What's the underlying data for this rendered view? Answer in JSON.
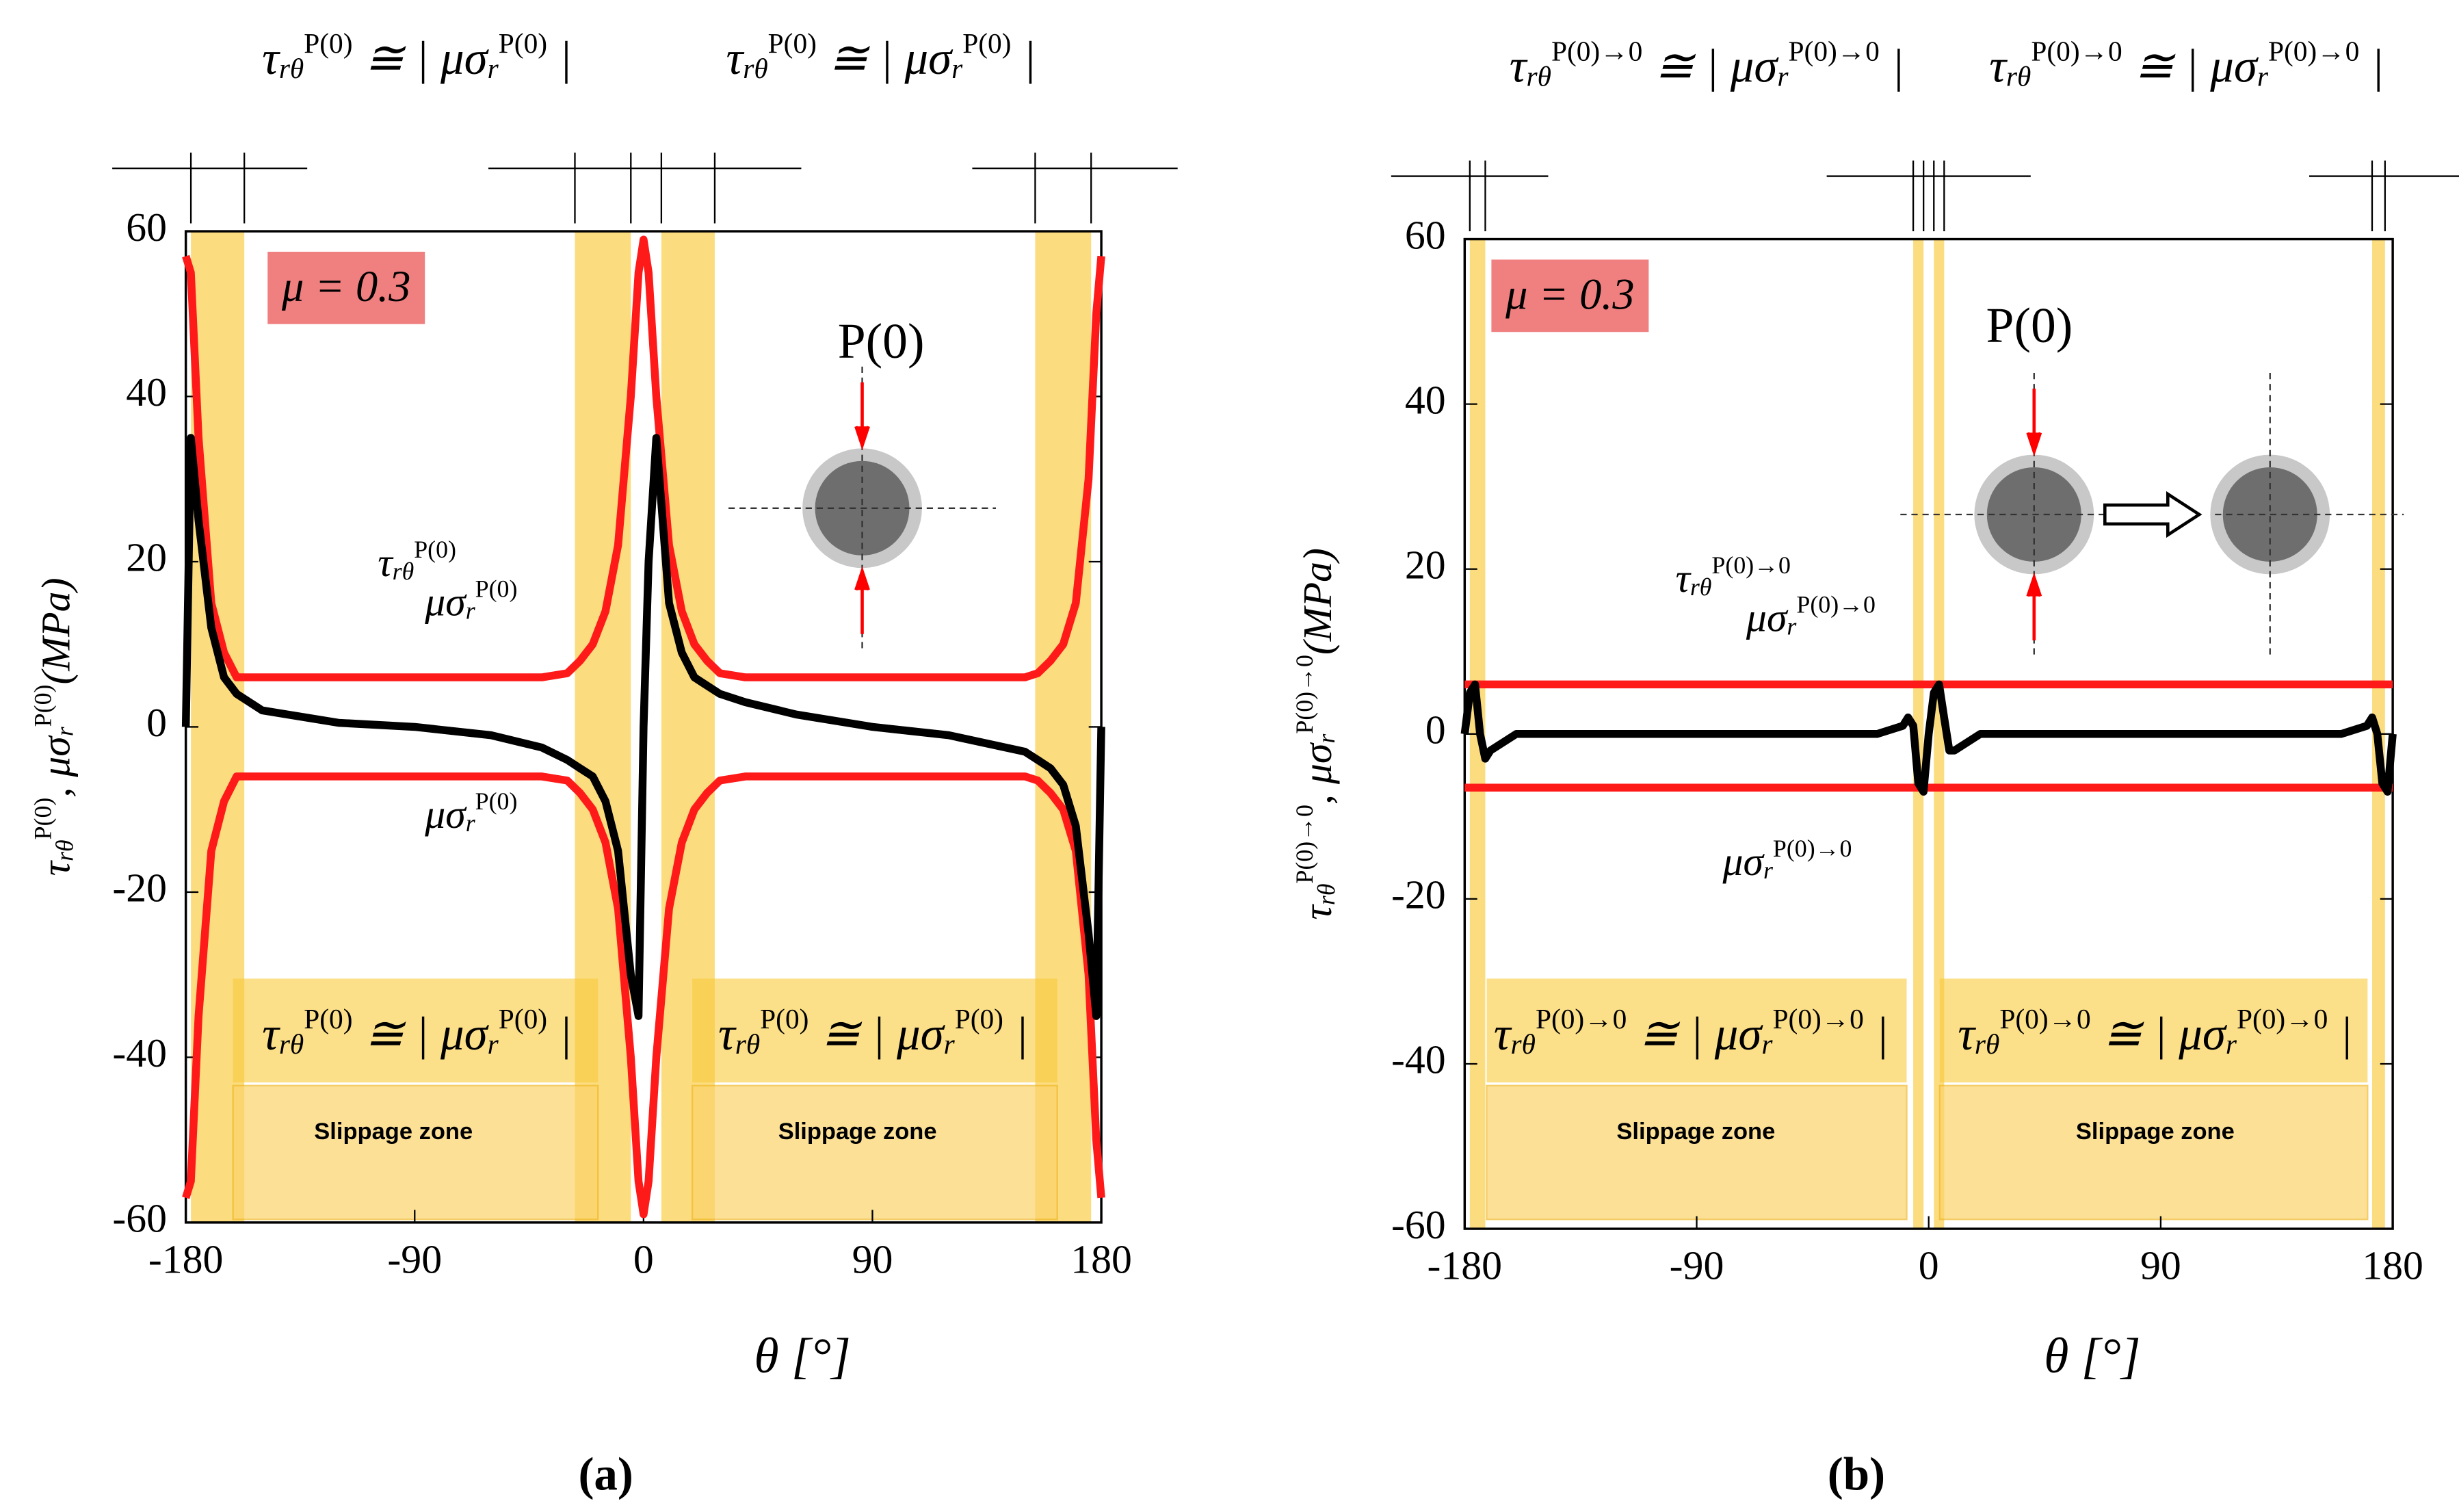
{
  "chart_data": [
    {
      "type": "line",
      "title": "(a)",
      "x_label": "θ [°]",
      "y_label": [
        {
          "text": "τ",
          "sub": "rθ",
          "sup": "P(0)"
        },
        {
          "text": ", μσ",
          "sub": "r",
          "sup": "P(0)"
        },
        {
          "text": "(MPa)"
        }
      ],
      "xlim": [
        -180,
        180
      ],
      "xticks": [
        -180,
        -90,
        0,
        90,
        180
      ],
      "ylim": [
        -60,
        60
      ],
      "yticks": [
        -60,
        -40,
        -20,
        0,
        20,
        40,
        60
      ],
      "slip_zones": [
        [
          -178,
          -157
        ],
        [
          -27,
          -5
        ],
        [
          7,
          28
        ],
        [
          154,
          176
        ]
      ],
      "x": [
        -180,
        -178,
        -175,
        -170,
        -165,
        -160,
        -150,
        -120,
        -90,
        -60,
        -40,
        -30,
        -25,
        -20,
        -15,
        -10,
        -5,
        -2,
        0,
        2,
        5,
        10,
        15,
        20,
        25,
        30,
        40,
        60,
        90,
        120,
        150,
        155,
        160,
        165,
        170,
        175,
        178,
        180
      ],
      "series": [
        {
          "color": "#ff1a1a",
          "values": [
            57,
            55,
            35,
            15,
            9,
            6,
            6,
            6,
            6,
            6,
            6,
            6.5,
            8,
            10,
            14,
            22,
            40,
            55,
            59,
            55,
            40,
            22,
            14,
            10,
            8,
            6.5,
            6,
            6,
            6,
            6,
            6,
            6.5,
            8,
            10,
            15,
            30,
            50,
            57
          ]
        },
        {
          "color": "#ff1a1a",
          "values": [
            -57,
            -55,
            -35,
            -15,
            -9,
            -6,
            -6,
            -6,
            -6,
            -6,
            -6,
            -6.5,
            -8,
            -10,
            -14,
            -22,
            -40,
            -55,
            -59,
            -55,
            -40,
            -22,
            -14,
            -10,
            -8,
            -6.5,
            -6,
            -6,
            -6,
            -6,
            -6,
            -6.5,
            -8,
            -10,
            -15,
            -30,
            -50,
            -57
          ]
        },
        {
          "color": "#000000",
          "values": [
            0,
            35,
            25,
            12,
            6,
            4,
            2,
            0.5,
            0,
            -1,
            -2.5,
            -4,
            -5,
            -6,
            -9,
            -15,
            -30,
            -35,
            0,
            20,
            35,
            15,
            9,
            6,
            5,
            4,
            3,
            1.5,
            0,
            -1,
            -3,
            -4,
            -5,
            -7,
            -12,
            -25,
            -35,
            0
          ]
        }
      ],
      "mu_label": "μ = 0.3",
      "load_label": "P(0)",
      "slip_labels": [
        "Slippage zone",
        "Slippage zone"
      ],
      "formulas": [
        [
          {
            "text": "τ",
            "sub": "rθ",
            "sup": "P(0)"
          },
          {
            "text": " ≅ | μσ",
            "sub": "r",
            "sup": "P(0)"
          },
          {
            "text": " |"
          }
        ],
        [
          {
            "text": "τ",
            "sub": "rθ",
            "sup": "P(0)"
          },
          {
            "text": " ≅ | μσ",
            "sub": "r",
            "sup": "P(0)"
          },
          {
            "text": " |"
          }
        ],
        [
          {
            "text": "τ",
            "sub": "rθ",
            "sup": "P(0)"
          },
          {
            "text": " ≅ | μσ",
            "sub": "r",
            "sup": "P(0)"
          },
          {
            "text": " |"
          }
        ],
        [
          {
            "text": "τ",
            "sub": "rθ",
            "sup": "P(0)"
          },
          {
            "text": " ≅ | μσ",
            "sub": "r",
            "sup": "P(0)"
          },
          {
            "text": " |"
          }
        ]
      ],
      "curve_labels": [
        [
          {
            "text": "τ",
            "sub": "rθ",
            "sup": "P(0)"
          }
        ],
        [
          {
            "text": "μσ",
            "sub": "r",
            "sup": "P(0)"
          }
        ],
        [
          {
            "text": "μσ",
            "sub": "r",
            "sup": "P(0)"
          }
        ]
      ]
    },
    {
      "type": "line",
      "title": "(b)",
      "x_label": "θ [°]",
      "y_label": [
        {
          "text": "τ",
          "sub": "rθ",
          "sup": "P(0)→0"
        },
        {
          "text": ", μσ",
          "sub": "r",
          "sup": "P(0)→0"
        },
        {
          "text": "(MPa)"
        }
      ],
      "xlim": [
        -180,
        180
      ],
      "xticks": [
        -180,
        -90,
        0,
        90,
        180
      ],
      "ylim": [
        -60,
        60
      ],
      "yticks": [
        -60,
        -40,
        -20,
        0,
        20,
        40,
        60
      ],
      "slip_zones": [
        [
          -178,
          -172
        ],
        [
          -6,
          -2
        ],
        [
          2,
          6
        ],
        [
          172,
          177
        ]
      ],
      "x": [
        -180,
        -178,
        -176,
        -174,
        -172,
        -170,
        -160,
        -90,
        -20,
        -10,
        -8,
        -6,
        -4,
        -2,
        0,
        2,
        4,
        6,
        8,
        10,
        20,
        90,
        160,
        170,
        172,
        174,
        176,
        178,
        180
      ],
      "series": [
        {
          "color": "#ff1a1a",
          "values": [
            6,
            6,
            6,
            6,
            6,
            6,
            6,
            6,
            6,
            6,
            6,
            6,
            6,
            6,
            6,
            6,
            6,
            6,
            6,
            6,
            6,
            6,
            6,
            6,
            6,
            6,
            6,
            6,
            6
          ]
        },
        {
          "color": "#ff1a1a",
          "values": [
            -6.5,
            -6.5,
            -6.5,
            -6.5,
            -6.5,
            -6.5,
            -6.5,
            -6.5,
            -6.5,
            -6.5,
            -6.5,
            -6.5,
            -6.5,
            -6.5,
            -6.5,
            -6.5,
            -6.5,
            -6.5,
            -6.5,
            -6.5,
            -6.5,
            -6.5,
            -6.5,
            -6.5,
            -6.5,
            -6.5,
            -6.5,
            -6.5,
            -6.5
          ]
        },
        {
          "color": "#000000",
          "values": [
            0,
            5,
            6,
            0,
            -3,
            -2,
            0,
            0,
            0,
            1,
            2,
            1,
            -6,
            -7,
            0,
            5,
            6,
            2,
            -2,
            -2,
            0,
            0,
            0,
            1,
            2,
            0,
            -6,
            -7,
            0
          ]
        }
      ],
      "mu_label": "μ = 0.3",
      "load_label": "P(0)",
      "slip_labels": [
        "Slippage zone",
        "Slippage zone"
      ],
      "formulas": [
        [
          {
            "text": "τ",
            "sub": "rθ",
            "sup": "P(0)→0"
          },
          {
            "text": " ≅ | μσ",
            "sub": "r",
            "sup": "P(0)→0"
          },
          {
            "text": " |"
          }
        ],
        [
          {
            "text": "τ",
            "sub": "rθ",
            "sup": "P(0)→0"
          },
          {
            "text": " ≅ | μσ",
            "sub": "r",
            "sup": "P(0)→0"
          },
          {
            "text": " |"
          }
        ],
        [
          {
            "text": "τ",
            "sub": "rθ",
            "sup": "P(0)→0"
          },
          {
            "text": " ≅ | μσ",
            "sub": "r",
            "sup": "P(0)→0"
          },
          {
            "text": " |"
          }
        ],
        [
          {
            "text": "τ",
            "sub": "rθ",
            "sup": "P(0)→0"
          },
          {
            "text": " ≅ | μσ",
            "sub": "r",
            "sup": "P(0)→0"
          },
          {
            "text": " |"
          }
        ]
      ],
      "curve_labels": [
        [
          {
            "text": "τ",
            "sub": "rθ",
            "sup": "P(0)→0"
          }
        ],
        [
          {
            "text": "μσ",
            "sub": "r",
            "sup": "P(0)→0"
          }
        ],
        [
          {
            "text": "μσ",
            "sub": "r",
            "sup": "P(0)→0"
          }
        ]
      ]
    }
  ]
}
